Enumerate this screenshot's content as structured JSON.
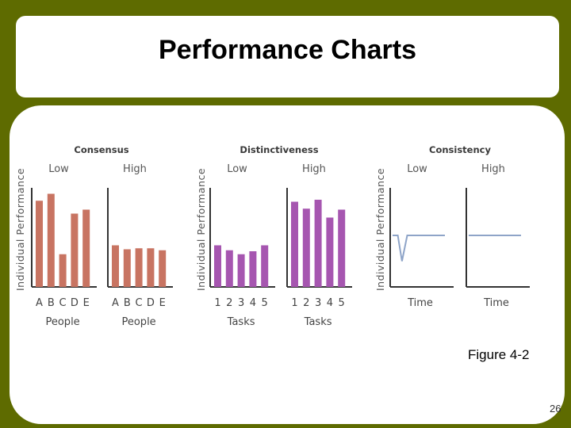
{
  "slide": {
    "title": "Performance Charts",
    "figure_label": "Figure 4-2",
    "page_number": "26"
  },
  "colors": {
    "background": "#5e6b00",
    "consensus_bar": "#c87462",
    "distinctiveness_bar": "#a656b0",
    "consistency_line": "#8ea4c8"
  },
  "chart_data": [
    {
      "type": "bar",
      "group_title": "Consensus",
      "ylabel": "Individual Performance",
      "panels": [
        {
          "subtitle": "Low",
          "xlabel": "People",
          "categories": [
            "A",
            "B",
            "C",
            "D",
            "E"
          ],
          "values": [
            0.87,
            0.94,
            0.33,
            0.74,
            0.78
          ]
        },
        {
          "subtitle": "High",
          "xlabel": "People",
          "categories": [
            "A",
            "B",
            "C",
            "D",
            "E"
          ],
          "values": [
            0.42,
            0.38,
            0.39,
            0.39,
            0.37
          ]
        }
      ]
    },
    {
      "type": "bar",
      "group_title": "Distinctiveness",
      "ylabel": "Individual Performance",
      "panels": [
        {
          "subtitle": "Low",
          "xlabel": "Tasks",
          "categories": [
            "1",
            "2",
            "3",
            "4",
            "5"
          ],
          "values": [
            0.42,
            0.37,
            0.33,
            0.36,
            0.42
          ]
        },
        {
          "subtitle": "High",
          "xlabel": "Tasks",
          "categories": [
            "1",
            "2",
            "3",
            "4",
            "5"
          ],
          "values": [
            0.86,
            0.79,
            0.88,
            0.7,
            0.78
          ]
        }
      ]
    },
    {
      "type": "line",
      "group_title": "Consistency",
      "ylabel": "Individual Performance",
      "panels": [
        {
          "subtitle": "Low",
          "xlabel": "Time",
          "x": [
            0,
            0.1,
            0.18,
            0.28,
            0.38,
            1.0
          ],
          "y": [
            0.52,
            0.52,
            0.26,
            0.52,
            0.52,
            0.52
          ]
        },
        {
          "subtitle": "High",
          "xlabel": "Time",
          "x": [
            0,
            1.0
          ],
          "y": [
            0.52,
            0.52
          ]
        }
      ]
    }
  ]
}
